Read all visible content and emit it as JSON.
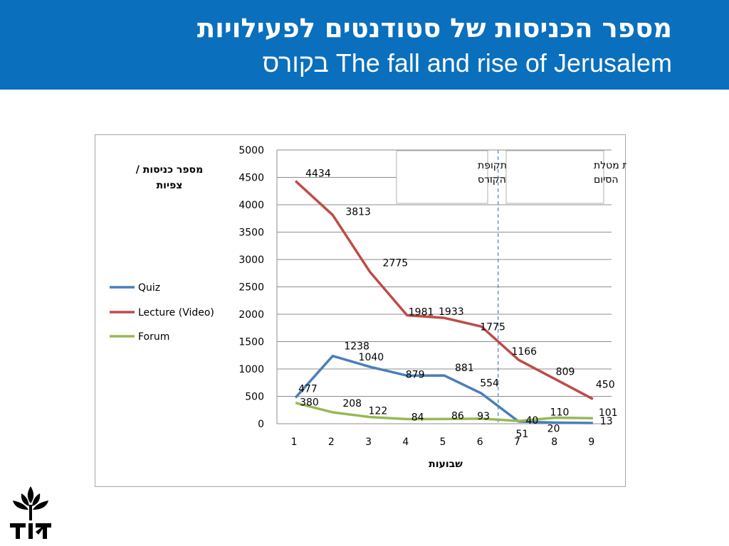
{
  "colors": {
    "header_bg": "#0a6fbd",
    "quiz": "#4a7ebb",
    "lecture": "#be4b48",
    "forum": "#98b954",
    "divider": "#4a7ebb"
  },
  "header": {
    "title_line1": "מספר הכניסות של סטודנטים לפעילויות",
    "title_line2": "The fall and rise of Jerusalem בקורס"
  },
  "logo": {
    "icon": "university-emblem-icon"
  },
  "chart_data": {
    "type": "line",
    "ylabel": "מספר כניסות / צפיות",
    "xlabel": "שבועות",
    "x": [
      1,
      2,
      3,
      4,
      5,
      6,
      7,
      8,
      9
    ],
    "ylim": [
      0,
      5000
    ],
    "yticks": [
      0,
      500,
      1000,
      1500,
      2000,
      2500,
      3000,
      3500,
      4000,
      4500,
      5000
    ],
    "grid": true,
    "legend_position": "left",
    "series": [
      {
        "name": "Quiz",
        "values": [
          477,
          1238,
          1040,
          879,
          881,
          554,
          40,
          20,
          13
        ]
      },
      {
        "name": "Lecture (Video)",
        "values": [
          4434,
          3813,
          2775,
          1981,
          1933,
          1775,
          1166,
          809,
          450
        ]
      },
      {
        "name": "Forum",
        "values": [
          380,
          208,
          122,
          84,
          86,
          93,
          51,
          110,
          101
        ]
      }
    ],
    "divider_x": 6.45,
    "annotations": [
      "תקופת הקורס",
      "תקופת מטלת הסיום"
    ]
  }
}
